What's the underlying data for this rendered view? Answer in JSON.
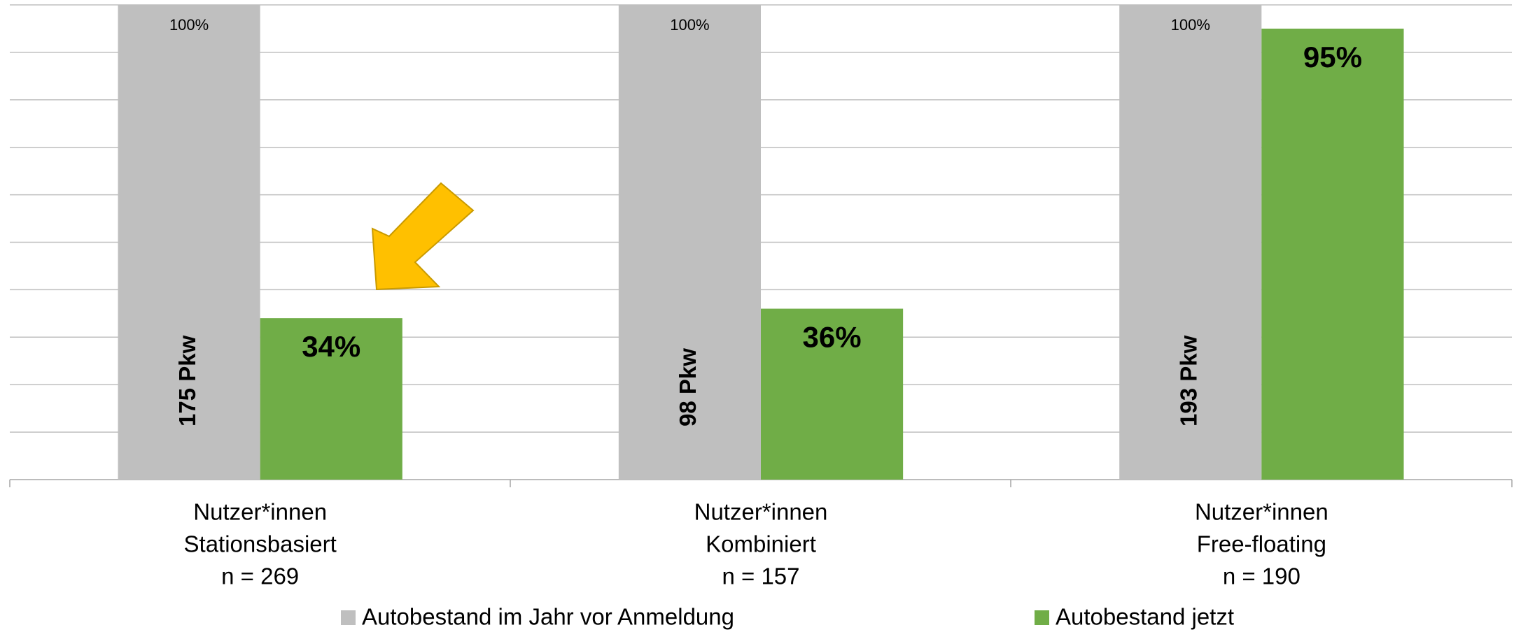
{
  "chart_data": {
    "type": "bar",
    "categories": [
      [
        "Nutzer*innen",
        "Stationsbasiert",
        "n = 269"
      ],
      [
        "Nutzer*innen",
        "Kombiniert",
        "n = 157"
      ],
      [
        "Nutzer*innen",
        "Free-floating",
        "n = 190"
      ]
    ],
    "series": [
      {
        "name": "Autobestand im Jahr vor Anmeldung",
        "color": "#bfbfbf",
        "values": [
          100,
          100,
          100
        ],
        "value_labels": [
          "100%",
          "100%",
          "100%"
        ]
      },
      {
        "name": "Autobestand jetzt",
        "color": "#70ad47",
        "values": [
          34,
          36,
          95
        ],
        "value_labels": [
          "34%",
          "36%",
          "95%"
        ]
      }
    ],
    "annotations": [
      "175 Pkw",
      "98 Pkw",
      "193 Pkw"
    ],
    "ylim": [
      0,
      100
    ],
    "yticks": [
      0,
      10,
      20,
      30,
      40,
      50,
      60,
      70,
      80,
      90,
      100
    ],
    "grid": true,
    "legend": "bottom"
  }
}
